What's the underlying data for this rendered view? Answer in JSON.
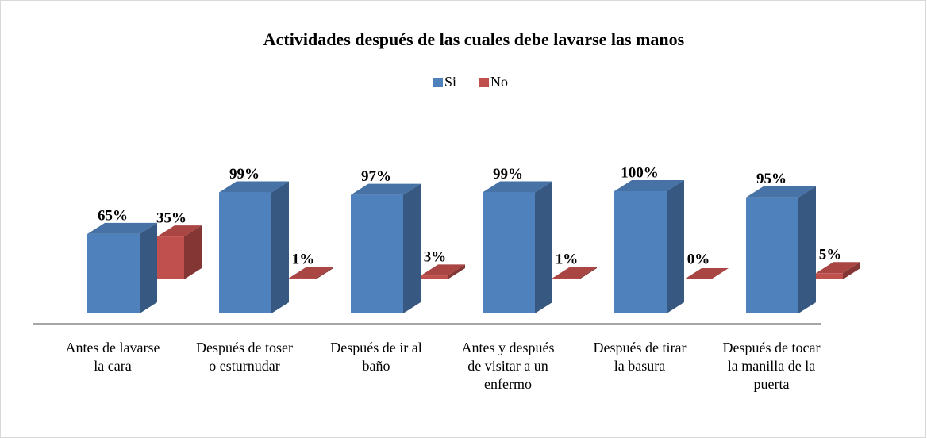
{
  "chart_data": {
    "type": "bar3d",
    "title": "Actividades después de las cuales debe lavarse las manos",
    "categories": [
      "Antes de lavarse la cara",
      "Después de toser o esturnudar",
      "Después de ir al baño",
      "Antes y después de visitar a un enfermo",
      "Después de tirar la basura",
      "Después de tocar la manilla de la puerta"
    ],
    "series": [
      {
        "name": "Si",
        "color": "#4f81bd",
        "values": [
          65,
          99,
          97,
          99,
          100,
          95
        ],
        "value_labels": [
          "65%",
          "99%",
          "97%",
          "99%",
          "100%",
          "95%"
        ]
      },
      {
        "name": "No",
        "color": "#c0504d",
        "values": [
          35,
          1,
          3,
          1,
          0,
          5
        ],
        "value_labels": [
          "35%",
          "1%",
          "3%",
          "1%",
          "0%",
          "5%"
        ]
      }
    ],
    "legend": "top"
  }
}
